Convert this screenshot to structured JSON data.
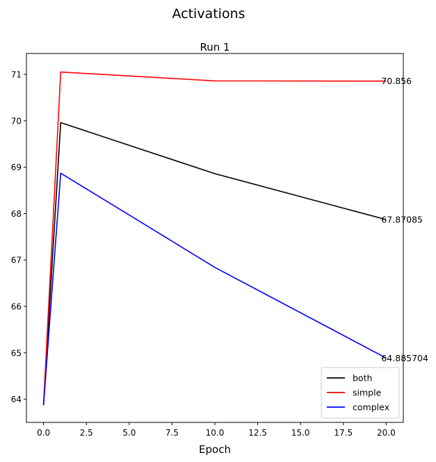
{
  "figure_title": "Activations",
  "chart_data": {
    "type": "line",
    "title": "Run 1",
    "xlabel": "Epoch",
    "ylabel": "",
    "xlim": [
      -1.0,
      21.0
    ],
    "ylim": [
      63.5,
      71.45
    ],
    "xticks": [
      0.0,
      2.5,
      5.0,
      7.5,
      10.0,
      12.5,
      15.0,
      17.5,
      20.0
    ],
    "xtick_labels": [
      "0.0",
      "2.5",
      "5.0",
      "7.5",
      "10.0",
      "12.5",
      "15.0",
      "17.5",
      "20.0"
    ],
    "yticks": [
      64,
      65,
      66,
      67,
      68,
      69,
      70,
      71
    ],
    "ytick_labels": [
      "64",
      "65",
      "66",
      "67",
      "68",
      "69",
      "70",
      "71"
    ],
    "grid": false,
    "legend_position": "bottom-right",
    "series": [
      {
        "name": "both",
        "color": "#000000",
        "x": [
          0,
          1,
          10,
          20
        ],
        "y": [
          63.87,
          69.96,
          68.86,
          67.87085
        ],
        "end_label": "67.87085"
      },
      {
        "name": "simple",
        "color": "#ff0000",
        "x": [
          0,
          1,
          10,
          20
        ],
        "y": [
          63.87,
          71.05,
          70.86,
          70.856
        ],
        "end_label": "70.856"
      },
      {
        "name": "complex",
        "color": "#0000ff",
        "x": [
          0,
          1,
          10,
          20
        ],
        "y": [
          63.87,
          68.87,
          66.84,
          64.885704
        ],
        "end_label": "64.885704"
      }
    ]
  }
}
